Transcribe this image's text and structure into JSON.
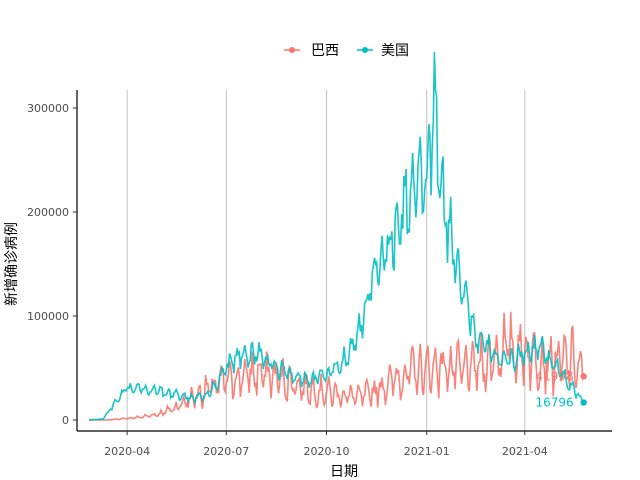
{
  "chart_data": {
    "type": "line",
    "xlabel": "日期",
    "ylabel": "新增确诊病例",
    "ylim": [
      0,
      300000
    ],
    "yticks": [
      0,
      100000,
      200000,
      300000
    ],
    "yticks_labels": [
      "0",
      "100000",
      "200000",
      "300000"
    ],
    "xlim": [
      "2020-02-15",
      "2021-06-20"
    ],
    "xticks": [
      "2020-04-01",
      "2020-07-01",
      "2020-10-01",
      "2021-01-01",
      "2021-04-01"
    ],
    "xticks_labels": [
      "2020-04",
      "2020-07",
      "2020-10",
      "2021-01",
      "2021-04"
    ],
    "grid": "vertical major lines",
    "legend_position": "top",
    "series": [
      {
        "name": "巴西",
        "color": "#F8766D",
        "end_label": "41998",
        "points": [
          [
            "2020-02-26",
            0
          ],
          [
            "2020-03-15",
            100
          ],
          [
            "2020-04-01",
            1500
          ],
          [
            "2020-04-15",
            3000
          ],
          [
            "2020-05-01",
            6000
          ],
          [
            "2020-05-15",
            12000
          ],
          [
            "2020-06-01",
            22000
          ],
          [
            "2020-06-15",
            30000
          ],
          [
            "2020-07-01",
            38000
          ],
          [
            "2020-07-15",
            42000
          ],
          [
            "2020-08-01",
            45000
          ],
          [
            "2020-08-15",
            41000
          ],
          [
            "2020-09-01",
            35000
          ],
          [
            "2020-09-15",
            30000
          ],
          [
            "2020-10-01",
            27000
          ],
          [
            "2020-10-15",
            24000
          ],
          [
            "2020-11-01",
            22000
          ],
          [
            "2020-11-15",
            28000
          ],
          [
            "2020-12-01",
            38000
          ],
          [
            "2020-12-15",
            45000
          ],
          [
            "2021-01-01",
            48000
          ],
          [
            "2021-01-15",
            52000
          ],
          [
            "2021-02-01",
            48000
          ],
          [
            "2021-02-15",
            50000
          ],
          [
            "2021-03-01",
            58000
          ],
          [
            "2021-03-15",
            70000
          ],
          [
            "2021-04-01",
            65000
          ],
          [
            "2021-04-15",
            60000
          ],
          [
            "2021-05-01",
            55000
          ],
          [
            "2021-05-15",
            58000
          ],
          [
            "2021-05-25",
            41998
          ]
        ]
      },
      {
        "name": "美国",
        "color": "#00BFC4",
        "end_label": "16796",
        "points": [
          [
            "2020-02-26",
            0
          ],
          [
            "2020-03-10",
            1000
          ],
          [
            "2020-03-20",
            15000
          ],
          [
            "2020-04-01",
            30000
          ],
          [
            "2020-04-15",
            30000
          ],
          [
            "2020-05-01",
            28000
          ],
          [
            "2020-05-15",
            24000
          ],
          [
            "2020-06-01",
            21000
          ],
          [
            "2020-06-15",
            24000
          ],
          [
            "2020-07-01",
            48000
          ],
          [
            "2020-07-15",
            65000
          ],
          [
            "2020-08-01",
            62000
          ],
          [
            "2020-08-15",
            52000
          ],
          [
            "2020-09-01",
            42000
          ],
          [
            "2020-09-15",
            40000
          ],
          [
            "2020-10-01",
            42000
          ],
          [
            "2020-10-15",
            55000
          ],
          [
            "2020-11-01",
            85000
          ],
          [
            "2020-11-15",
            150000
          ],
          [
            "2020-12-01",
            175000
          ],
          [
            "2020-12-15",
            215000
          ],
          [
            "2021-01-01",
            230000
          ],
          [
            "2021-01-08",
            300000
          ],
          [
            "2021-01-15",
            210000
          ],
          [
            "2021-02-01",
            140000
          ],
          [
            "2021-02-15",
            80000
          ],
          [
            "2021-03-01",
            65000
          ],
          [
            "2021-03-15",
            55000
          ],
          [
            "2021-04-01",
            65000
          ],
          [
            "2021-04-15",
            70000
          ],
          [
            "2021-05-01",
            50000
          ],
          [
            "2021-05-15",
            30000
          ],
          [
            "2021-05-25",
            16796
          ]
        ]
      }
    ]
  }
}
